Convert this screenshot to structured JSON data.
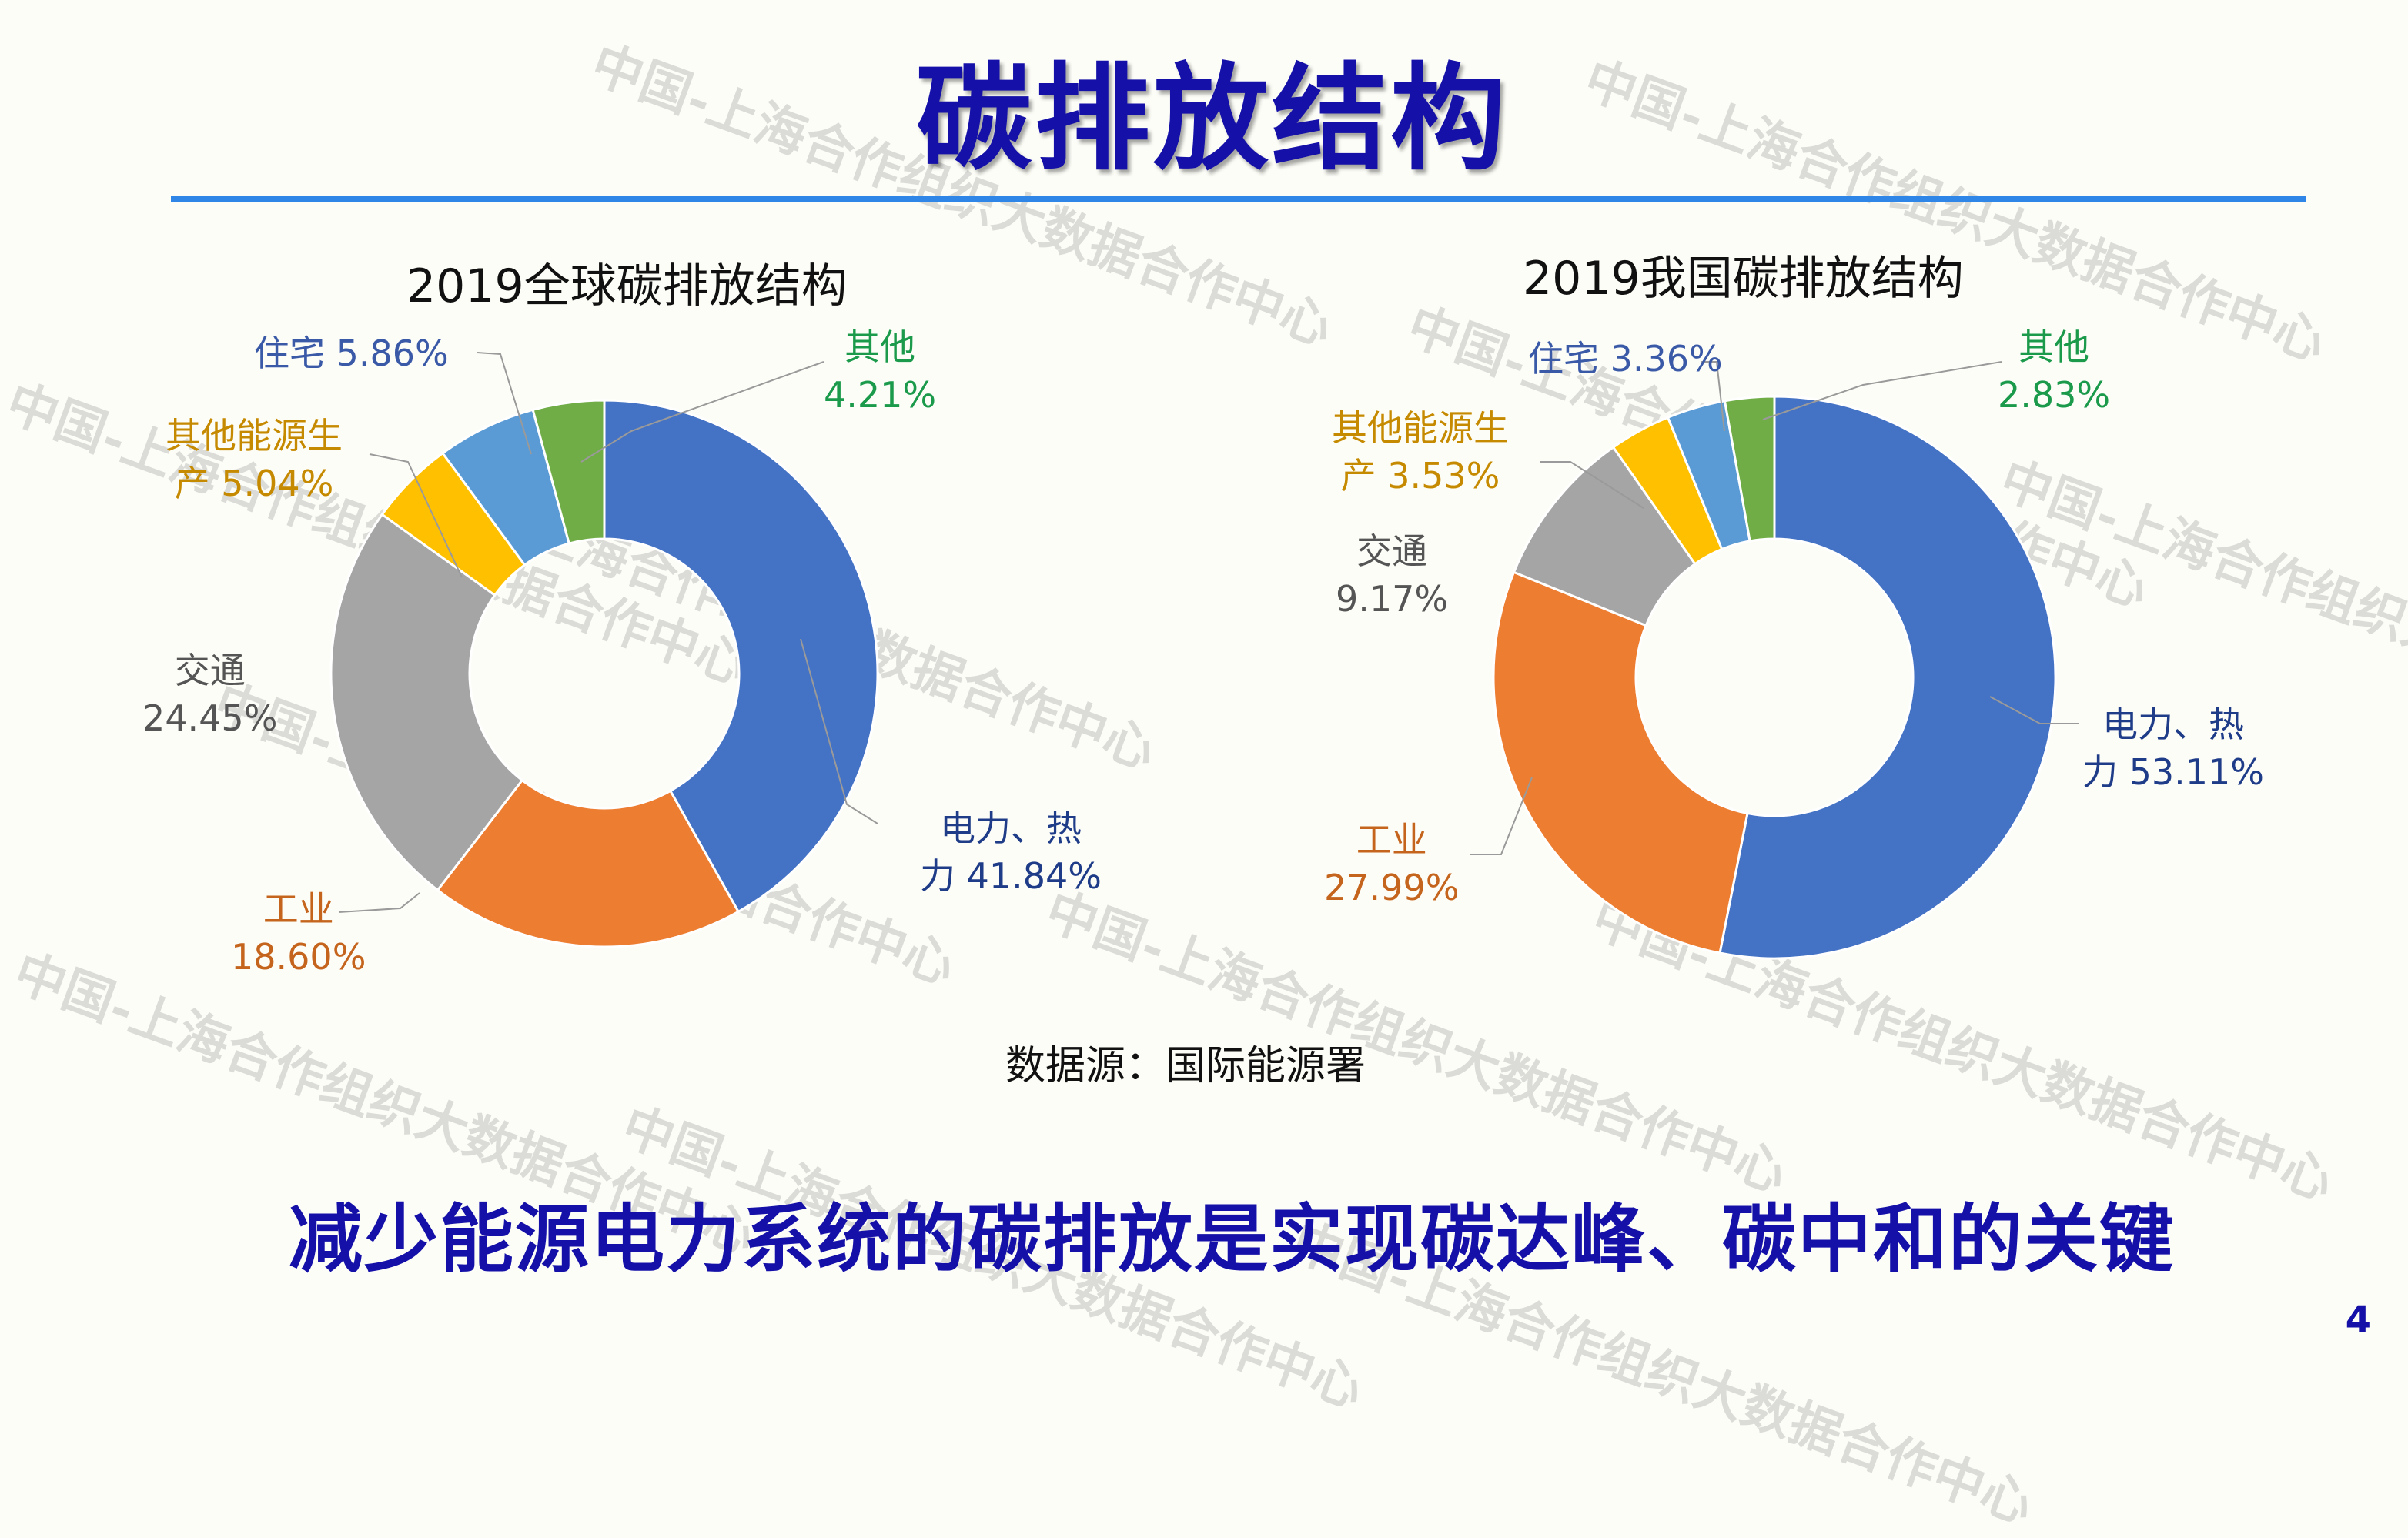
{
  "slide": {
    "title": "碳排放结构",
    "source_note": "数据源：国际能源署",
    "conclusion": "减少能源电力系统的碳排放是实现碳达峰、碳中和的关键",
    "page_number": "4",
    "watermark": "中国-上海合作组织大数据合作中心"
  },
  "chart_data": [
    {
      "type": "pie",
      "donut": true,
      "title": "2019全球碳排放结构",
      "slices": [
        {
          "name": "电力、热力",
          "value": 41.84,
          "label_lines": [
            "电力、热",
            "力 41.84%"
          ],
          "color": "#4472c4"
        },
        {
          "name": "工业",
          "value": 18.6,
          "label_lines": [
            "工业",
            "18.60%"
          ],
          "color": "#ed7d31"
        },
        {
          "name": "交通",
          "value": 24.45,
          "label_lines": [
            "交通",
            "24.45%"
          ],
          "color": "#a5a5a5"
        },
        {
          "name": "其他能源生产",
          "value": 5.04,
          "label_lines": [
            "其他能源生",
            "产 5.04%"
          ],
          "color": "#ffc000"
        },
        {
          "name": "住宅",
          "value": 5.86,
          "label_lines": [
            "住宅 5.86%"
          ],
          "color": "#5b9bd5"
        },
        {
          "name": "其他",
          "value": 4.21,
          "label_lines": [
            "其他",
            "4.21%"
          ],
          "color": "#70ad47"
        }
      ]
    },
    {
      "type": "pie",
      "donut": true,
      "title": "2019我国碳排放结构",
      "slices": [
        {
          "name": "电力、热力",
          "value": 53.11,
          "label_lines": [
            "电力、热",
            "力 53.11%"
          ],
          "color": "#4472c4"
        },
        {
          "name": "工业",
          "value": 27.99,
          "label_lines": [
            "工业",
            "27.99%"
          ],
          "color": "#ed7d31"
        },
        {
          "name": "交通",
          "value": 9.17,
          "label_lines": [
            "交通",
            "9.17%"
          ],
          "color": "#a5a5a5"
        },
        {
          "name": "其他能源生产",
          "value": 3.53,
          "label_lines": [
            "其他能源生",
            "产 3.53%"
          ],
          "color": "#ffc000"
        },
        {
          "name": "住宅",
          "value": 3.36,
          "label_lines": [
            "住宅 3.36%"
          ],
          "color": "#5b9bd5"
        },
        {
          "name": "其他",
          "value": 2.83,
          "label_lines": [
            "其他",
            "2.83%"
          ],
          "color": "#70ad47"
        }
      ]
    }
  ]
}
